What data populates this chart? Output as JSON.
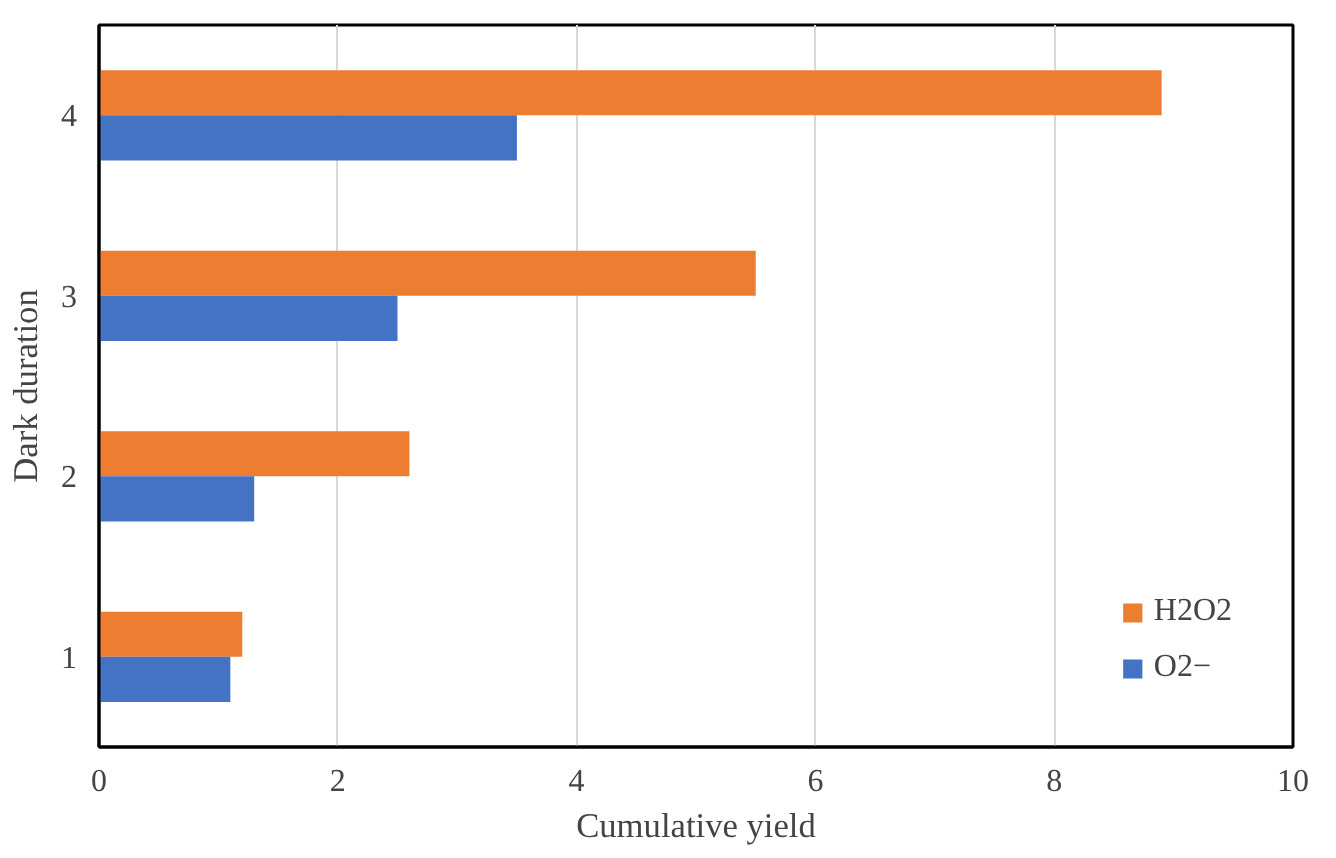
{
  "chart_data": {
    "type": "bar",
    "orientation": "horizontal",
    "xlabel": "Cumulative yield",
    "ylabel": "Dark duration",
    "categories": [
      "4",
      "3",
      "2",
      "1"
    ],
    "series": [
      {
        "name": "H2O2",
        "color": "#ed7d31",
        "values": [
          8.9,
          5.5,
          2.6,
          1.2
        ]
      },
      {
        "name": "O2−",
        "color": "#4472c4",
        "values": [
          3.5,
          2.5,
          1.3,
          1.1
        ]
      }
    ],
    "xlim": [
      0,
      10
    ],
    "xticks": [
      0,
      2,
      4,
      6,
      8,
      10
    ],
    "grid": "x",
    "legend": "bottom right"
  }
}
